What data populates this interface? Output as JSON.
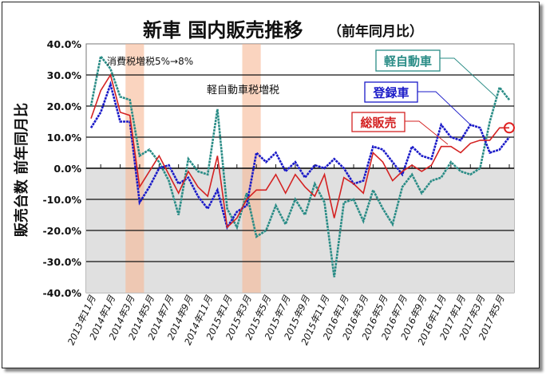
{
  "chart_data": {
    "type": "line",
    "title": "新車 国内販売推移",
    "subtitle": "（前年同月比）",
    "ylabel": "販売台数 前年同月比",
    "xlabel": "",
    "ylim": [
      -40,
      40
    ],
    "y_ticks": [
      "40.0%",
      "30.0%",
      "20.0%",
      "10.0%",
      "0.0%",
      "-10.0%",
      "-20.0%",
      "-30.0%",
      "-40.0%"
    ],
    "y_tick_values": [
      40,
      30,
      20,
      10,
      0,
      -10,
      -20,
      -30,
      -40
    ],
    "x": [
      "2013年11月",
      "2013年12月",
      "2014年1月",
      "2014年2月",
      "2014年3月",
      "2014年4月",
      "2014年5月",
      "2014年6月",
      "2014年7月",
      "2014年8月",
      "2014年9月",
      "2014年10月",
      "2014年11月",
      "2014年12月",
      "2015年1月",
      "2015年2月",
      "2015年3月",
      "2015年4月",
      "2015年5月",
      "2015年6月",
      "2015年7月",
      "2015年8月",
      "2015年9月",
      "2015年10月",
      "2015年11月",
      "2015年12月",
      "2016年1月",
      "2016年2月",
      "2016年3月",
      "2016年4月",
      "2016年5月",
      "2016年6月",
      "2016年7月",
      "2016年8月",
      "2016年9月",
      "2016年10月",
      "2016年11月",
      "2016年12月",
      "2017年1月",
      "2017年2月",
      "2017年3月",
      "2017年4月",
      "2017年5月",
      "2017年6月"
    ],
    "x_tick_labels": [
      "2013年11月",
      "2014年1月",
      "2014年3月",
      "2014年5月",
      "2014年7月",
      "2014年9月",
      "2014年11月",
      "2015年1月",
      "2015年3月",
      "2015年5月",
      "2015年7月",
      "2015年9月",
      "2015年11月",
      "2016年1月",
      "2016年3月",
      "2016年5月",
      "2016年7月",
      "2016年9月",
      "2016年11月",
      "2017年1月",
      "2017年3月",
      "2017年5月"
    ],
    "grid": true,
    "negative_region_color": "#e0e0e0",
    "series": [
      {
        "name": "軽自動車",
        "color": "#2a8c86",
        "values": [
          20,
          36,
          32,
          23,
          22,
          4,
          6,
          2,
          -4,
          -15,
          3,
          -1,
          -2,
          19,
          -13,
          -19,
          -8,
          -22,
          -20,
          -12,
          -18,
          -10,
          -15,
          -5,
          -11,
          -35,
          -11,
          -10,
          -17,
          -7,
          -13,
          -18,
          -6,
          -2,
          -8,
          -4,
          -3,
          2,
          -1,
          -2,
          0,
          15,
          26,
          22
        ]
      },
      {
        "name": "登録車",
        "color": "#1a1ac8",
        "values": [
          13,
          18,
          27,
          15,
          15,
          -11,
          -6,
          0,
          1,
          -5,
          -3,
          -9,
          -13,
          -7,
          -19,
          -14,
          -12,
          5,
          2,
          5,
          -1,
          2,
          -3,
          1,
          0,
          3,
          0,
          -5,
          -4,
          7,
          6,
          2,
          -2,
          7,
          4,
          3,
          14,
          10,
          9,
          14,
          13,
          5,
          6,
          10
        ]
      },
      {
        "name": "総販売",
        "color": "#d42222",
        "values": [
          16,
          25,
          30,
          18,
          17,
          -6,
          -1,
          4,
          -2,
          -8,
          -1,
          -6,
          -9,
          4,
          -19,
          -16,
          -10,
          -7,
          -7,
          -2,
          -8,
          -2,
          -6,
          -9,
          -2,
          -16,
          -3,
          -5,
          -8,
          5,
          2,
          -4,
          -1,
          1,
          -1,
          1,
          7,
          7,
          5,
          8,
          9,
          9,
          13,
          13
        ]
      }
    ],
    "highlight_bands": [
      {
        "from": "2014年3月",
        "to": "2014年4月",
        "label": "消費税増税5%→8%"
      },
      {
        "from": "2015年3月",
        "to": "2015年4月",
        "label": "軽自動車税増税"
      }
    ],
    "band_color": "#f7b894",
    "annotations": [
      "消費税増税5%→8%",
      "軽自動車税増税"
    ],
    "legend_placement": "top-right (callout labels)"
  }
}
